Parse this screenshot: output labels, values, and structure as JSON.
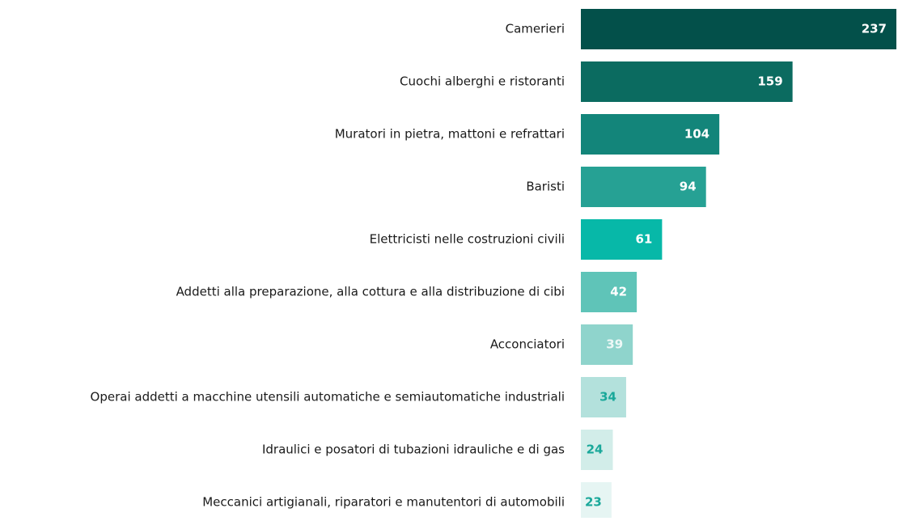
{
  "chart_data": {
    "type": "hbar",
    "categories": [
      "Camerieri",
      "Cuochi alberghi e ristoranti",
      "Muratori in pietra, mattoni e refrattari",
      "Baristi",
      "Elettricisti nelle costruzioni civili",
      "Addetti alla preparazione, alla cottura e alla distribuzione di cibi",
      "Acconciatori",
      "Operai addetti a macchine utensili automatiche e semiautomatiche industriali",
      "Idraulici e posatori di tubazioni idrauliche e di gas",
      "Meccanici artigianali, riparatori e manutentori di automobili"
    ],
    "values": [
      237,
      159,
      104,
      94,
      61,
      42,
      39,
      34,
      24,
      23
    ],
    "colors": [
      "#03504a",
      "#0b6b60",
      "#13857a",
      "#26a194",
      "#07b8a8",
      "#5fc4b8",
      "#8fd4cc",
      "#b3e1dc",
      "#d2ede9",
      "#e6f5f3"
    ],
    "label_colors": [
      "#ffffff",
      "#ffffff",
      "#ffffff",
      "#ffffff",
      "#ffffff",
      "#ffffff",
      "#eef8f6",
      "#1aa89a",
      "#1aa89a",
      "#1aa89a"
    ]
  }
}
